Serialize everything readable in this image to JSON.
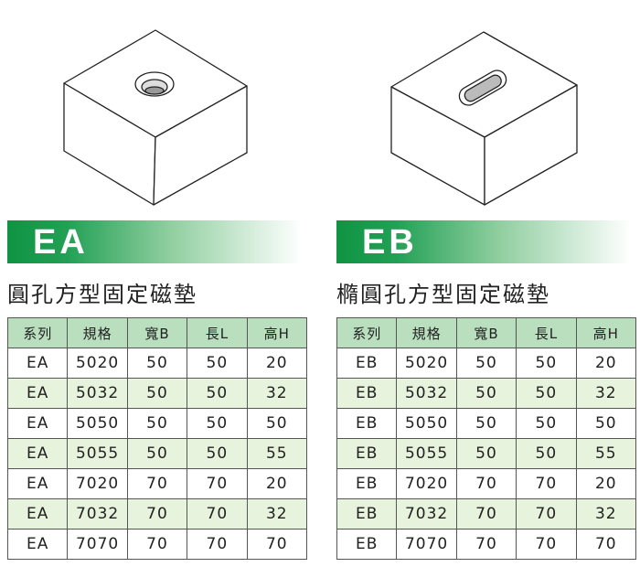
{
  "products": [
    {
      "code": "EA",
      "title": "圓孔方型固定磁墊",
      "hole": "round",
      "headers": [
        "系列",
        "規格",
        "寬B",
        "長L",
        "高H"
      ],
      "rows": [
        [
          "EA",
          "5020",
          "50",
          "50",
          "20"
        ],
        [
          "EA",
          "5032",
          "50",
          "50",
          "32"
        ],
        [
          "EA",
          "5050",
          "50",
          "50",
          "50"
        ],
        [
          "EA",
          "5055",
          "50",
          "50",
          "55"
        ],
        [
          "EA",
          "7020",
          "70",
          "70",
          "20"
        ],
        [
          "EA",
          "7032",
          "70",
          "70",
          "32"
        ],
        [
          "EA",
          "7070",
          "70",
          "70",
          "70"
        ]
      ]
    },
    {
      "code": "EB",
      "title": "橢圓孔方型固定磁墊",
      "hole": "oval",
      "headers": [
        "系列",
        "規格",
        "寬B",
        "長L",
        "高H"
      ],
      "rows": [
        [
          "EB",
          "5020",
          "50",
          "50",
          "20"
        ],
        [
          "EB",
          "5032",
          "50",
          "50",
          "32"
        ],
        [
          "EB",
          "5050",
          "50",
          "50",
          "50"
        ],
        [
          "EB",
          "5055",
          "50",
          "50",
          "55"
        ],
        [
          "EB",
          "7020",
          "70",
          "70",
          "20"
        ],
        [
          "EB",
          "7032",
          "70",
          "70",
          "32"
        ],
        [
          "EB",
          "7070",
          "70",
          "70",
          "70"
        ]
      ]
    }
  ],
  "colors": {
    "banner": "#0f9443",
    "header_bg": "#b9dfbf",
    "alt_row": "#e7f3dc"
  }
}
